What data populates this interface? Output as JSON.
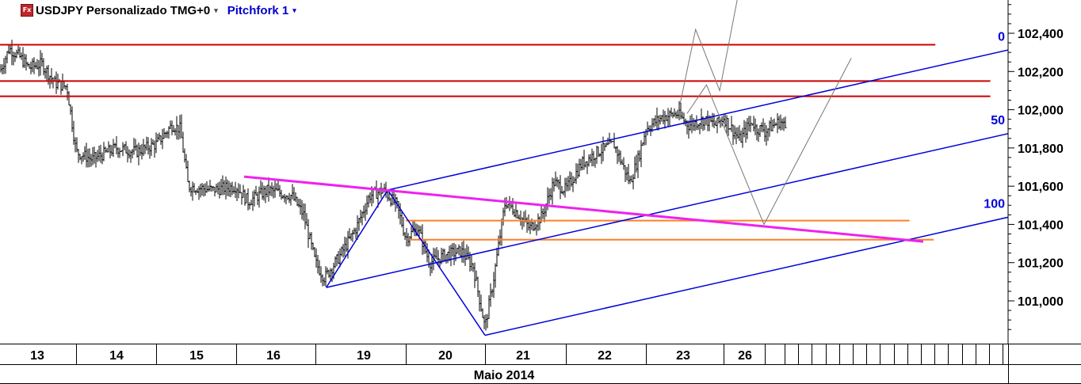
{
  "header": {
    "icon_label": "Fx",
    "symbol_title": "USDJPY Personalizado TMG+0",
    "study_title": "Pitchfork 1",
    "dropdown_glyph": "▾"
  },
  "chart_data": {
    "type": "candlestick",
    "instrument": "USDJPY",
    "ylim": [
      100.8,
      102.6
    ],
    "y_ticks": [
      "102,400",
      "102,200",
      "102,000",
      "101,800",
      "101,600",
      "101,400",
      "101,200",
      "101,000"
    ],
    "y_tick_values": [
      102.4,
      102.2,
      102.0,
      101.8,
      101.6,
      101.4,
      101.2,
      101.0
    ],
    "xlabel": "Maio 2014",
    "x_day_labels": [
      "13",
      "14",
      "15",
      "16",
      "19",
      "20",
      "21",
      "22",
      "23",
      "26"
    ],
    "x_day_index": [
      0,
      1,
      2,
      3,
      4,
      5,
      6,
      7,
      8,
      9
    ],
    "price_path": [
      [
        0.0,
        102.2
      ],
      [
        0.12,
        102.32
      ],
      [
        0.25,
        102.28
      ],
      [
        0.38,
        102.22
      ],
      [
        0.55,
        102.24
      ],
      [
        0.72,
        102.14
      ],
      [
        0.88,
        102.12
      ],
      [
        1.0,
        101.78
      ],
      [
        1.2,
        101.74
      ],
      [
        1.5,
        101.8
      ],
      [
        1.75,
        101.78
      ],
      [
        2.0,
        101.82
      ],
      [
        2.2,
        101.92
      ],
      [
        2.3,
        101.9
      ],
      [
        2.4,
        101.6
      ],
      [
        2.7,
        101.58
      ],
      [
        3.0,
        101.6
      ],
      [
        3.15,
        101.52
      ],
      [
        3.4,
        101.58
      ],
      [
        3.7,
        101.55
      ],
      [
        3.85,
        101.45
      ],
      [
        4.0,
        101.2
      ],
      [
        4.1,
        101.12
      ],
      [
        4.25,
        101.22
      ],
      [
        4.45,
        101.38
      ],
      [
        4.6,
        101.55
      ],
      [
        4.75,
        101.58
      ],
      [
        4.9,
        101.5
      ],
      [
        5.0,
        101.33
      ],
      [
        5.15,
        101.38
      ],
      [
        5.3,
        101.2
      ],
      [
        5.5,
        101.24
      ],
      [
        5.7,
        101.26
      ],
      [
        5.85,
        101.18
      ],
      [
        6.0,
        100.86
      ],
      [
        6.1,
        101.1
      ],
      [
        6.25,
        101.52
      ],
      [
        6.4,
        101.46
      ],
      [
        6.55,
        101.38
      ],
      [
        6.7,
        101.44
      ],
      [
        6.85,
        101.62
      ],
      [
        7.0,
        101.58
      ],
      [
        7.2,
        101.72
      ],
      [
        7.4,
        101.78
      ],
      [
        7.6,
        101.82
      ],
      [
        7.8,
        101.62
      ],
      [
        7.9,
        101.74
      ],
      [
        8.0,
        101.9
      ],
      [
        8.2,
        101.96
      ],
      [
        8.4,
        101.98
      ],
      [
        8.55,
        101.92
      ],
      [
        8.75,
        101.95
      ],
      [
        8.9,
        101.92
      ],
      [
        9.0,
        101.96
      ],
      [
        9.2,
        101.9
      ],
      [
        9.4,
        101.84
      ],
      [
        9.55,
        101.9
      ],
      [
        9.7,
        101.94
      ],
      [
        9.78,
        101.9
      ]
    ],
    "horizontal_lines": [
      {
        "name": "resistance-1",
        "color": "#cc0000",
        "y": 102.34,
        "x0": 0.0,
        "x1": 11.62
      },
      {
        "name": "resistance-2",
        "color": "#cc0000",
        "y": 102.15,
        "x0": -0.5,
        "x1": 12.3
      },
      {
        "name": "resistance-3",
        "color": "#cc0000",
        "y": 102.07,
        "x0": -0.5,
        "x1": 12.3
      },
      {
        "name": "orange-level-upper",
        "color": "#ff7f27",
        "y": 101.42,
        "x0": 5.0,
        "x1": 11.3
      },
      {
        "name": "orange-level-lower",
        "color": "#ff7f27",
        "y": 101.32,
        "x0": 5.05,
        "x1": 11.6
      }
    ],
    "trendlines": [
      {
        "name": "magenta-trendline",
        "color": "#ee22ee",
        "width": 3,
        "points": [
          [
            3.1,
            101.65
          ],
          [
            11.47,
            101.31
          ]
        ]
      }
    ],
    "pitchfork": {
      "color": "#0000dd",
      "pivots": [
        [
          4.12,
          101.07
        ],
        [
          4.8,
          101.58
        ],
        [
          6.0,
          100.82
        ]
      ],
      "level_labels": [
        "0",
        "50",
        "100"
      ]
    },
    "projection_paths": [
      {
        "name": "projection-upper",
        "color": "#777777",
        "points": [
          [
            8.44,
            102.03
          ],
          [
            8.64,
            102.42
          ],
          [
            8.95,
            102.1
          ],
          [
            9.18,
            102.6
          ]
        ]
      },
      {
        "name": "projection-lower",
        "color": "#777777",
        "points": [
          [
            8.53,
            101.98
          ],
          [
            8.78,
            102.13
          ],
          [
            9.5,
            101.4
          ],
          [
            10.58,
            102.27
          ]
        ]
      }
    ],
    "grid": false,
    "background": "#ffffff",
    "axis_color": "#000000"
  }
}
